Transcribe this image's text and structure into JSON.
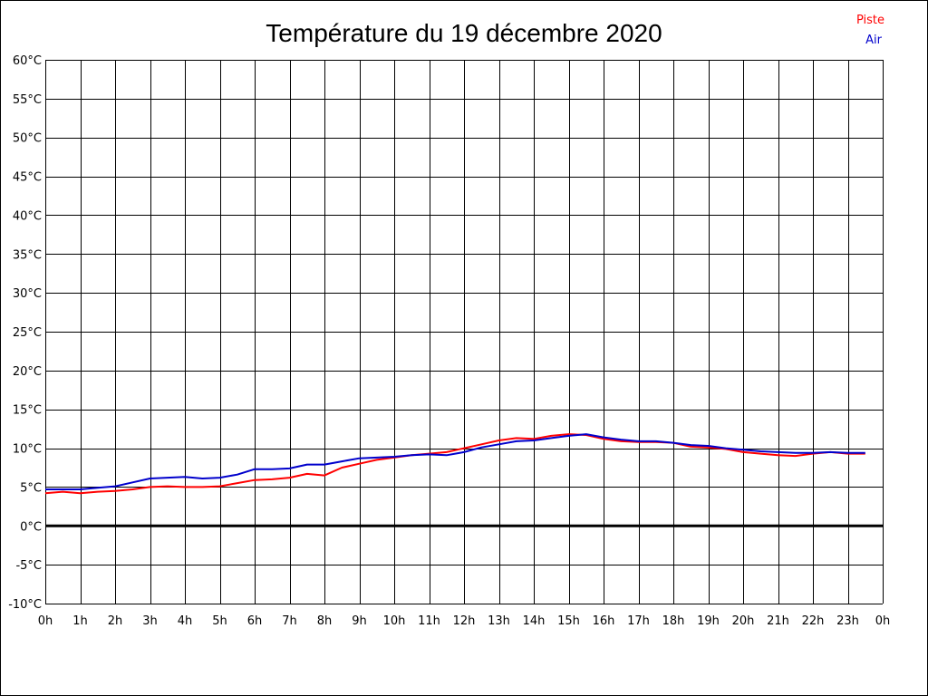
{
  "chart_data": {
    "type": "line",
    "title": "Température du 19 décembre 2020",
    "xlabel": "",
    "ylabel": "",
    "x_tick_labels": [
      "0h",
      "1h",
      "2h",
      "3h",
      "4h",
      "5h",
      "6h",
      "7h",
      "8h",
      "9h",
      "10h",
      "11h",
      "12h",
      "13h",
      "14h",
      "15h",
      "16h",
      "17h",
      "18h",
      "19h",
      "20h",
      "21h",
      "22h",
      "23h",
      "0h"
    ],
    "y_tick_labels": [
      "60°C",
      "55°C",
      "50°C",
      "45°C",
      "40°C",
      "35°C",
      "30°C",
      "25°C",
      "20°C",
      "15°C",
      "10°C",
      "5°C",
      "0°C",
      "-5°C",
      "-10°C"
    ],
    "xlim": [
      0,
      24
    ],
    "ylim": [
      -10,
      60
    ],
    "grid": true,
    "zero_line": 0,
    "legend_position": "top-right",
    "x": [
      0,
      0.5,
      1,
      1.5,
      2,
      2.5,
      3,
      3.5,
      4,
      4.5,
      5,
      5.5,
      6,
      6.5,
      7,
      7.5,
      8,
      8.5,
      9,
      9.5,
      10,
      10.5,
      11,
      11.5,
      12,
      12.5,
      13,
      13.5,
      14,
      14.5,
      15,
      15.5,
      16,
      16.5,
      17,
      17.5,
      18,
      18.5,
      19,
      19.5,
      20,
      20.5,
      21,
      21.5,
      22,
      22.5,
      23,
      23.5
    ],
    "series": [
      {
        "name": "Piste",
        "color": "#ff0000",
        "values": [
          4.2,
          4.4,
          4.2,
          4.4,
          4.5,
          4.7,
          5.0,
          5.1,
          5.0,
          5.0,
          5.1,
          5.5,
          5.9,
          6.0,
          6.2,
          6.7,
          6.5,
          7.5,
          8.0,
          8.5,
          8.8,
          9.1,
          9.3,
          9.5,
          10.0,
          10.5,
          11.0,
          11.3,
          11.2,
          11.6,
          11.8,
          11.7,
          11.2,
          10.9,
          10.8,
          10.8,
          10.7,
          10.2,
          10.1,
          9.9,
          9.5,
          9.3,
          9.1,
          9.0,
          9.3,
          9.5,
          9.3,
          9.3
        ]
      },
      {
        "name": "Air",
        "color": "#0000cc",
        "values": [
          4.7,
          4.7,
          4.7,
          4.9,
          5.1,
          5.6,
          6.1,
          6.2,
          6.3,
          6.1,
          6.2,
          6.6,
          7.3,
          7.3,
          7.4,
          7.9,
          7.9,
          8.3,
          8.7,
          8.8,
          8.9,
          9.1,
          9.2,
          9.1,
          9.5,
          10.1,
          10.5,
          10.9,
          11.0,
          11.3,
          11.6,
          11.8,
          11.4,
          11.1,
          10.9,
          10.9,
          10.7,
          10.4,
          10.3,
          10.0,
          9.8,
          9.6,
          9.5,
          9.4,
          9.4,
          9.5,
          9.4,
          9.4
        ]
      }
    ]
  }
}
